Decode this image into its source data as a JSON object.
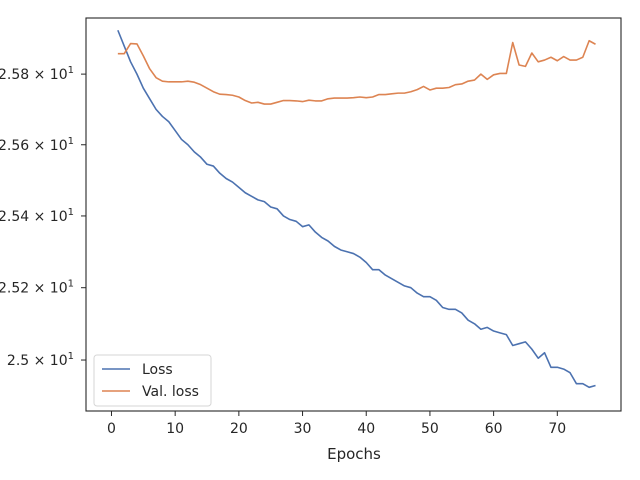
{
  "chart_data": {
    "type": "line",
    "title": "",
    "xlabel": "Epochs",
    "ylabel": "",
    "xlim": [
      -4,
      80
    ],
    "ylim": [
      24.86,
      25.96
    ],
    "yscale": "log",
    "xticks": [
      0,
      10,
      20,
      30,
      40,
      50,
      60,
      70
    ],
    "yticks": [
      25.0,
      25.2,
      25.4,
      25.6,
      25.8
    ],
    "ytick_labels": [
      "2.5 × 10^1",
      "2.52 × 10^1",
      "2.54 × 10^1",
      "2.56 × 10^1",
      "2.58 × 10^1"
    ],
    "grid": false,
    "legend": "lower-left",
    "series": [
      {
        "name": "Loss",
        "color": "#4c72b0",
        "x": [
          1,
          2,
          3,
          4,
          5,
          6,
          7,
          8,
          9,
          10,
          11,
          12,
          13,
          14,
          15,
          16,
          17,
          18,
          19,
          20,
          21,
          22,
          23,
          24,
          25,
          26,
          27,
          28,
          29,
          30,
          31,
          32,
          33,
          34,
          35,
          36,
          37,
          38,
          39,
          40,
          41,
          42,
          43,
          44,
          45,
          46,
          47,
          48,
          49,
          50,
          51,
          52,
          53,
          54,
          55,
          56,
          57,
          58,
          59,
          60,
          61,
          62,
          63,
          64,
          65,
          66,
          67,
          68,
          69,
          70,
          71,
          72,
          73,
          74,
          75,
          76
        ],
        "values": [
          25.925,
          25.88,
          25.835,
          25.8,
          25.76,
          25.73,
          25.7,
          25.68,
          25.665,
          25.64,
          25.615,
          25.6,
          25.58,
          25.565,
          25.545,
          25.54,
          25.52,
          25.505,
          25.495,
          25.48,
          25.465,
          25.455,
          25.445,
          25.44,
          25.425,
          25.42,
          25.4,
          25.39,
          25.385,
          25.37,
          25.375,
          25.355,
          25.34,
          25.33,
          25.315,
          25.305,
          25.3,
          25.295,
          25.285,
          25.27,
          25.25,
          25.25,
          25.235,
          25.225,
          25.215,
          25.205,
          25.2,
          25.185,
          25.175,
          25.175,
          25.165,
          25.145,
          25.14,
          25.14,
          25.13,
          25.11,
          25.1,
          25.085,
          25.09,
          25.08,
          25.075,
          25.07,
          25.04,
          25.045,
          25.05,
          25.03,
          25.005,
          25.02,
          24.98,
          24.98,
          24.975,
          24.965,
          24.935,
          24.935,
          24.925,
          24.93
        ]
      },
      {
        "name": "Val. loss",
        "color": "#dd8452",
        "x": [
          1,
          2,
          3,
          4,
          5,
          6,
          7,
          8,
          9,
          10,
          11,
          12,
          13,
          14,
          15,
          16,
          17,
          18,
          19,
          20,
          21,
          22,
          23,
          24,
          25,
          26,
          27,
          28,
          29,
          30,
          31,
          32,
          33,
          34,
          35,
          36,
          37,
          38,
          39,
          40,
          41,
          42,
          43,
          44,
          45,
          46,
          47,
          48,
          49,
          50,
          51,
          52,
          53,
          54,
          55,
          56,
          57,
          58,
          59,
          60,
          61,
          62,
          63,
          64,
          65,
          66,
          67,
          68,
          69,
          70,
          71,
          72,
          73,
          74,
          75,
          76
        ],
        "values": [
          25.858,
          25.858,
          25.887,
          25.886,
          25.852,
          25.815,
          25.79,
          25.78,
          25.778,
          25.778,
          25.778,
          25.78,
          25.777,
          25.77,
          25.76,
          25.75,
          25.743,
          25.742,
          25.74,
          25.735,
          25.725,
          25.718,
          25.72,
          25.715,
          25.715,
          25.72,
          25.725,
          25.725,
          25.724,
          25.722,
          25.726,
          25.724,
          25.724,
          25.73,
          25.732,
          25.732,
          25.732,
          25.733,
          25.735,
          25.733,
          25.735,
          25.742,
          25.742,
          25.744,
          25.746,
          25.746,
          25.75,
          25.756,
          25.765,
          25.755,
          25.76,
          25.76,
          25.762,
          25.77,
          25.772,
          25.78,
          25.783,
          25.8,
          25.785,
          25.798,
          25.802,
          25.802,
          25.89,
          25.826,
          25.822,
          25.86,
          25.835,
          25.84,
          25.848,
          25.838,
          25.85,
          25.84,
          25.84,
          25.848,
          25.895,
          25.885
        ]
      }
    ]
  }
}
